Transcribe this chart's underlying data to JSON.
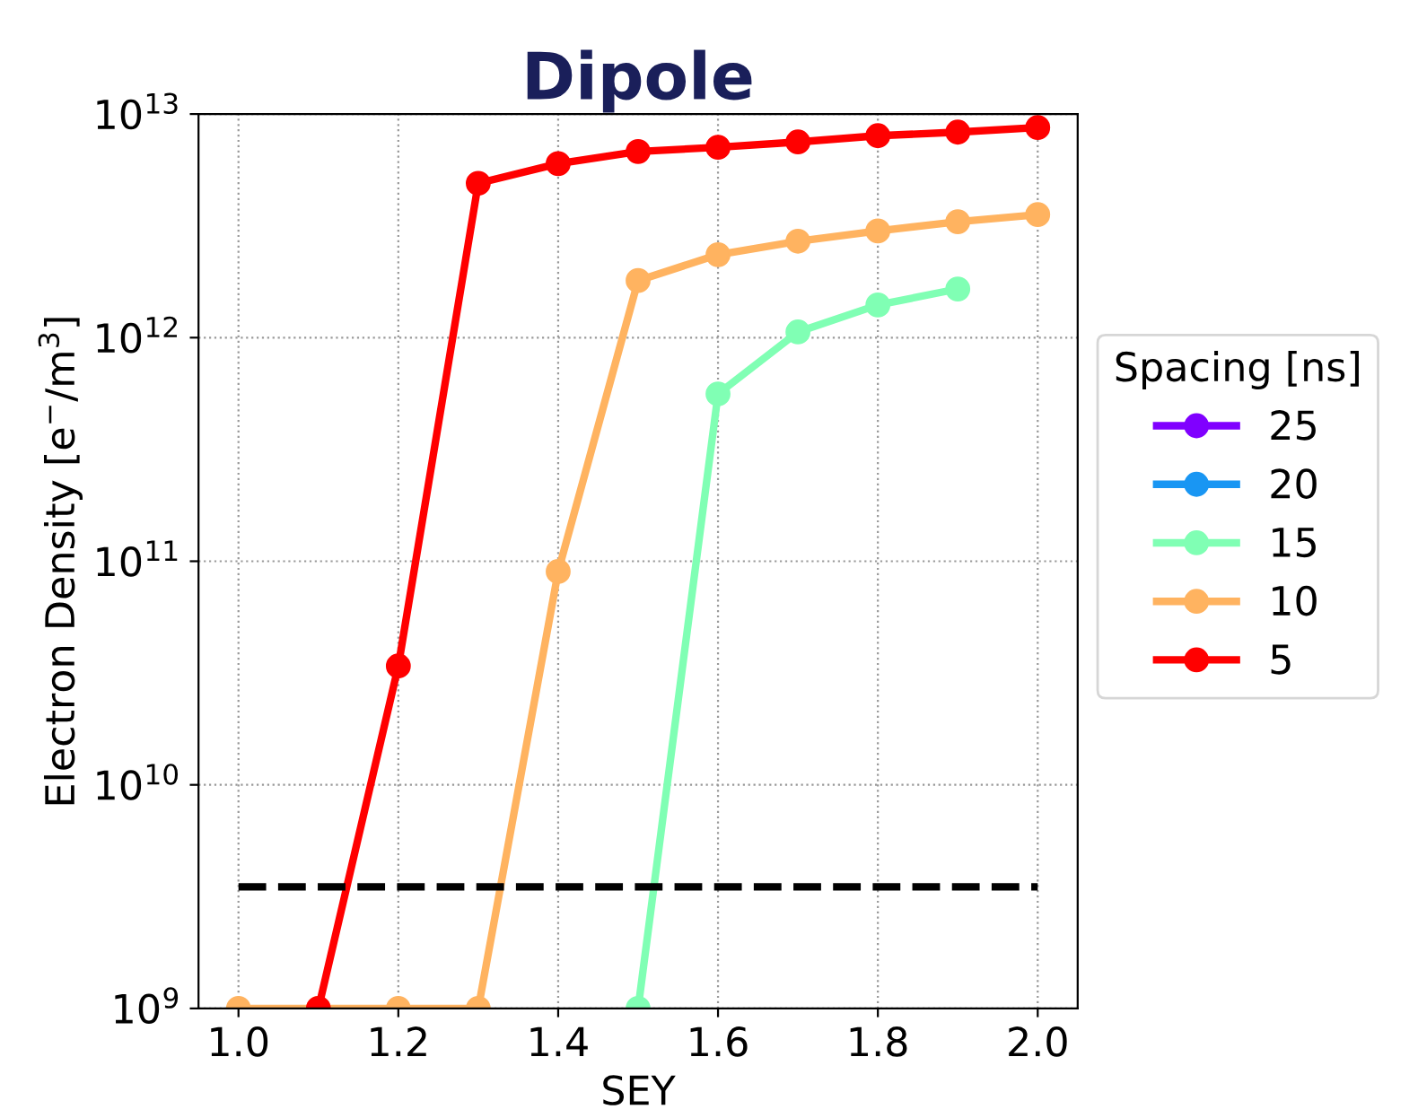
{
  "chart_data": {
    "type": "line",
    "title": "Dipole",
    "xlabel": "SEY",
    "ylabel": "Electron Density [e$^{−}$/m$^{3}$]",
    "legend_title": "Spacing [ns]",
    "x": [
      1.0,
      1.1,
      1.2,
      1.3,
      1.4,
      1.5,
      1.6,
      1.7,
      1.8,
      1.9,
      2.0
    ],
    "series": [
      {
        "name": "25",
        "color": "#8000ff",
        "values": [
          null,
          null,
          null,
          null,
          null,
          null,
          null,
          null,
          null,
          null,
          null
        ]
      },
      {
        "name": "20",
        "color": "#1996f3",
        "values": [
          null,
          null,
          null,
          null,
          null,
          null,
          null,
          null,
          null,
          null,
          null
        ]
      },
      {
        "name": "15",
        "color": "#80ffb4",
        "values": [
          null,
          null,
          null,
          null,
          null,
          1000000000.0,
          560000000000.0,
          1060000000000.0,
          1400000000000.0,
          1650000000000.0,
          null
        ]
      },
      {
        "name": "10",
        "color": "#ffb360",
        "values": [
          1000000000.0,
          1000000000.0,
          1000000000.0,
          1000000000.0,
          90000000000.0,
          1800000000000.0,
          2350000000000.0,
          2700000000000.0,
          3000000000000.0,
          3300000000000.0,
          3550000000000.0
        ]
      },
      {
        "name": "5",
        "color": "#ff0000",
        "values": [
          null,
          1000000000.0,
          34000000000.0,
          4900000000000.0,
          6000000000000.0,
          6800000000000.0,
          7100000000000.0,
          7500000000000.0,
          8000000000000.0,
          8300000000000.0,
          8700000000000.0
        ]
      },
      {
        "type": "line",
        "color": "#000000",
        "line_style": "dashed",
        "marker": "none",
        "x": [
          1.0,
          2.0
        ],
        "values": [
          3500000000.0,
          3500000000.0
        ]
      }
    ],
    "log": "y",
    "marker": "circle",
    "line_style": "solid",
    "grid": true,
    "legend": "right",
    "xlim": [
      0.95,
      2.05
    ],
    "xticks": [
      {
        "value": 1.0,
        "label": "1.0"
      },
      {
        "value": 1.2,
        "label": "1.2"
      },
      {
        "value": 1.4,
        "label": "1.4"
      },
      {
        "value": 1.6,
        "label": "1.6"
      },
      {
        "value": 1.8,
        "label": "1.8"
      },
      {
        "value": 2.0,
        "label": "2.0"
      }
    ],
    "ylim": [
      1000000000.0,
      10000000000000.0
    ],
    "yticks": [
      {
        "value": 1000000000.0,
        "label": "10$^{9}$"
      },
      {
        "value": 10000000000.0,
        "label": "10$^{10}$"
      },
      {
        "value": 100000000000.0,
        "label": "10$^{11}$"
      },
      {
        "value": 1000000000000.0,
        "label": "10$^{12}$"
      },
      {
        "value": 10000000000000.0,
        "label": "10$^{13}$"
      }
    ]
  }
}
